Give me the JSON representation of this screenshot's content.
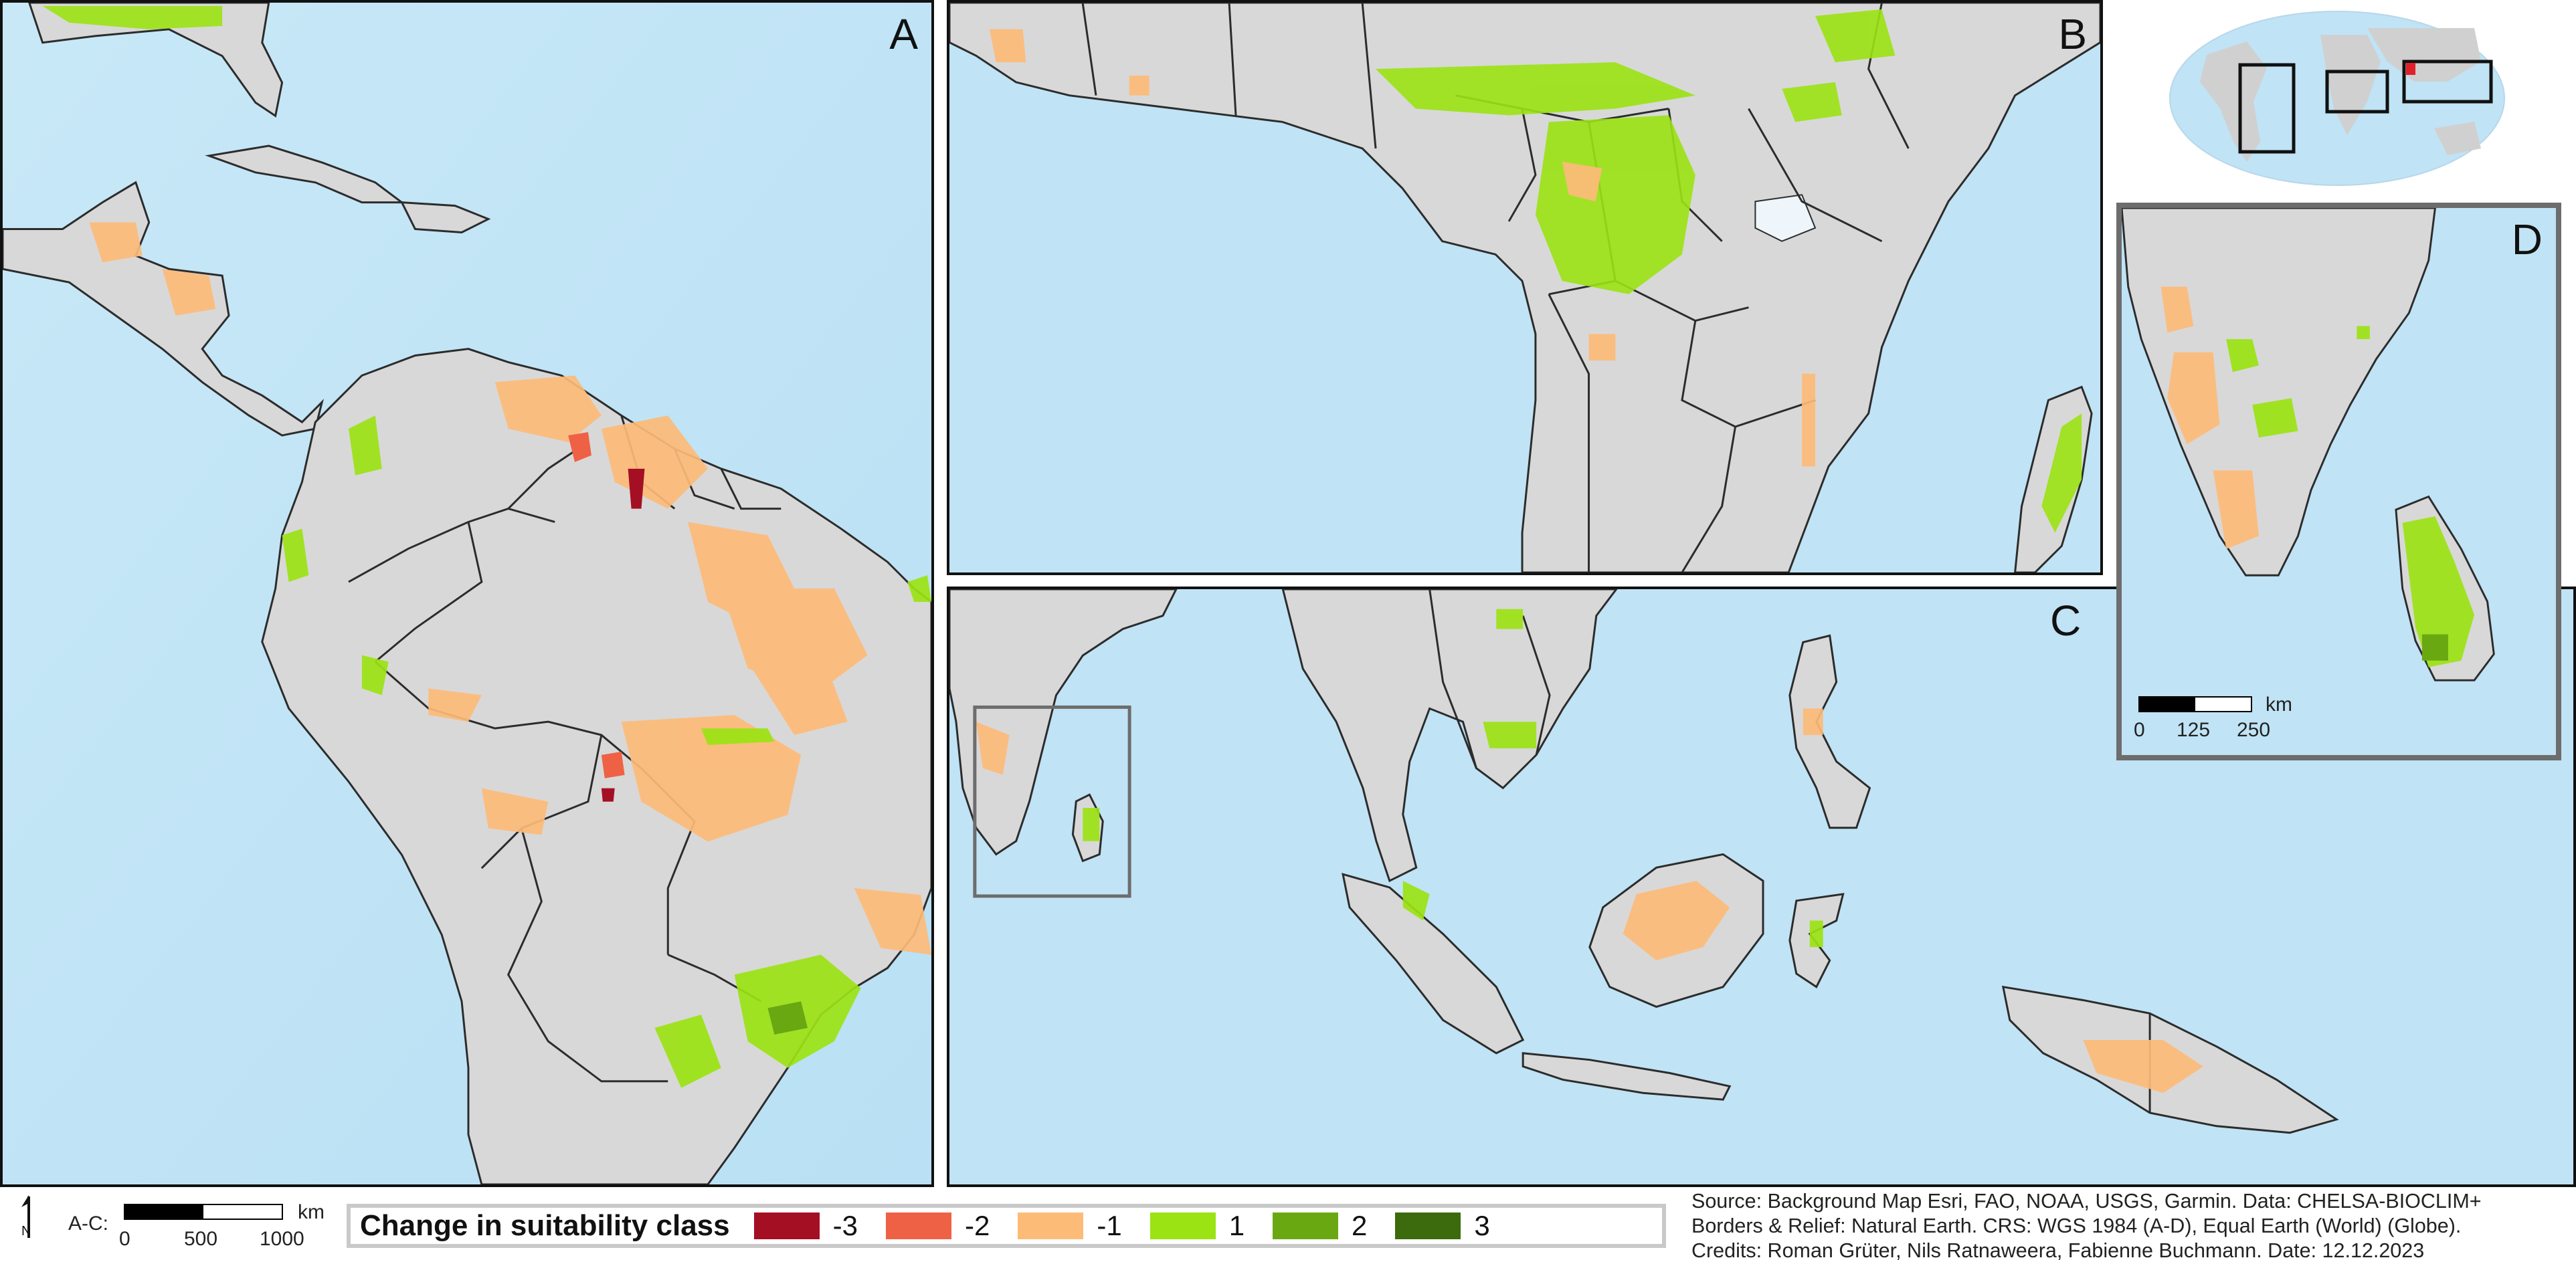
{
  "panels": {
    "A": {
      "letter": "A"
    },
    "B": {
      "letter": "B"
    },
    "C": {
      "letter": "C"
    },
    "D": {
      "letter": "D"
    }
  },
  "scale_ac": {
    "prefix": "A-C:",
    "unit": "km",
    "ticks": [
      "0",
      "500",
      "1000"
    ]
  },
  "scale_d": {
    "unit": "km",
    "ticks": [
      "0",
      "125",
      "250"
    ]
  },
  "legend": {
    "title": "Change in suitability class",
    "items": [
      {
        "label": "-3",
        "color": "#a50f24"
      },
      {
        "label": "-2",
        "color": "#ef6144"
      },
      {
        "label": "-1",
        "color": "#fdbb78"
      },
      {
        "label": "1",
        "color": "#9be313"
      },
      {
        "label": "2",
        "color": "#6aa812"
      },
      {
        "label": "3",
        "color": "#3b6b0c"
      }
    ]
  },
  "credits": [
    "Source: Background Map Esri, FAO, NOAA, USGS, Garmin. Data: CHELSA-BIOCLIM+",
    "Borders & Relief: Natural Earth. CRS: WGS 1984 (A-D), Equal Earth (World) (Globe).",
    "Credits: Roman Grüter, Nils Ratnaweera, Fabienne Buchmann. Date: 12.12.2023"
  ],
  "colors": {
    "ocean": "#bfe2f4",
    "land": "#d8d8d8",
    "border": "#2c2c2c"
  },
  "icons": {
    "north_arrow": "north-arrow-icon"
  }
}
